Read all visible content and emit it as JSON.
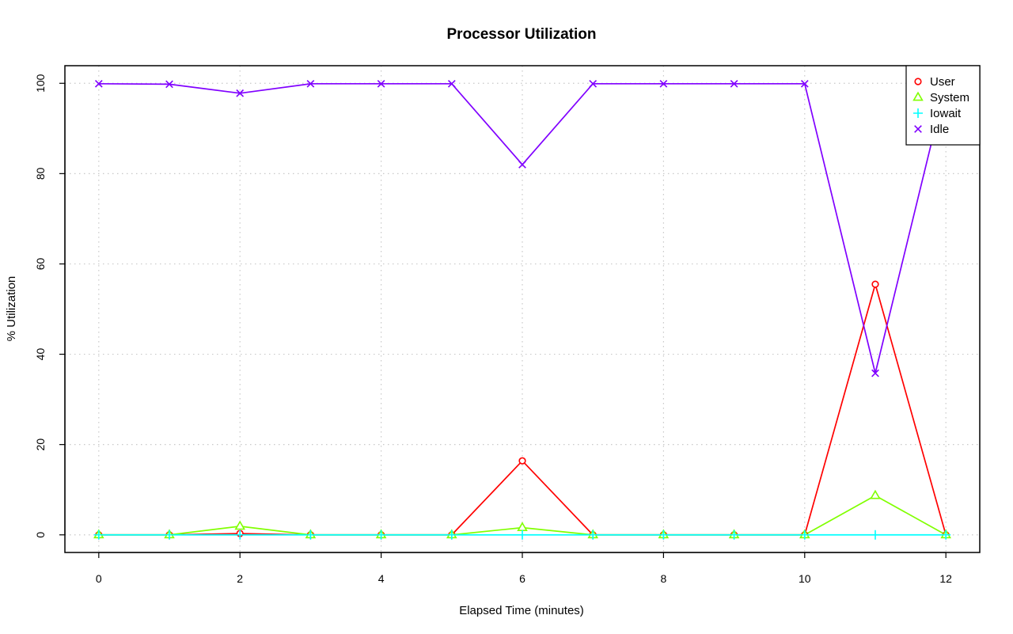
{
  "chart_data": {
    "type": "line",
    "title": "Processor Utilization",
    "xlabel": "Elapsed Time (minutes)",
    "ylabel": "% Utilization",
    "xlim": [
      -0.48,
      12.48
    ],
    "ylim": [
      -3.9,
      103.9
    ],
    "x_ticks": [
      0,
      2,
      4,
      6,
      8,
      10,
      12
    ],
    "y_ticks": [
      0,
      20,
      40,
      60,
      80,
      100
    ],
    "grid": true,
    "legend_position": "top-right",
    "x": [
      0,
      1,
      2,
      3,
      4,
      5,
      6,
      7,
      8,
      9,
      10,
      11,
      12
    ],
    "series": [
      {
        "name": "User",
        "color": "#ff0000",
        "marker": "circle",
        "values": [
          0,
          0,
          0.3,
          0,
          0,
          0,
          16.4,
          0,
          0,
          0,
          0,
          55.5,
          0
        ]
      },
      {
        "name": "System",
        "color": "#80ff00",
        "marker": "triangle",
        "values": [
          0,
          0,
          1.9,
          0,
          0,
          0,
          1.6,
          0,
          0,
          0,
          0,
          8.7,
          0
        ]
      },
      {
        "name": "Iowait",
        "color": "#00ffff",
        "marker": "plus",
        "values": [
          0,
          0,
          0,
          0,
          0,
          0,
          0,
          0,
          0,
          0,
          0,
          0,
          0
        ]
      },
      {
        "name": "Idle",
        "color": "#8000ff",
        "marker": "cross",
        "values": [
          99.9,
          99.8,
          97.8,
          99.9,
          99.9,
          99.9,
          82.0,
          99.9,
          99.9,
          99.9,
          99.9,
          35.8,
          99.9
        ]
      }
    ]
  }
}
